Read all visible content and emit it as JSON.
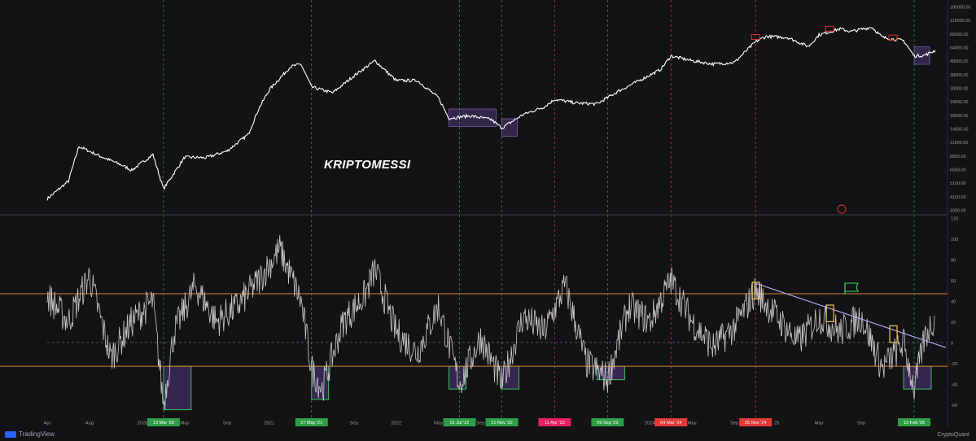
{
  "watermark": "KRIPTOMESSI",
  "branding": {
    "platform": "TradingView",
    "indicator_credit": "CryptoQuant"
  },
  "colors": {
    "background": "#131316",
    "price_line": "#ffffff",
    "oscillator_line": "#c8c8c8",
    "band_line": "#d9822b",
    "zone_border": "#3bd15e",
    "zone_fill": "#3a2a55",
    "green_marker": "#2e9e46",
    "red_marker": "#e53935",
    "pink_marker": "#e91e63",
    "trendline": "#b9a4e8",
    "highlight_box": "#f0c75e"
  },
  "chart_data": [
    {
      "type": "line",
      "panel": "price",
      "scale": "log",
      "ylim": [
        3300,
        180000
      ],
      "y_ticks": [
        "180000.00",
        "110000.00",
        "86000.00",
        "64000.00",
        "48000.00",
        "38000.00",
        "30000.00",
        "24000.00",
        "18000.00",
        "14000.00",
        "11000.00",
        "8500.00",
        "6500.00",
        "5100.00",
        "4100.00",
        "3300.00"
      ],
      "series": [
        {
          "x": [
            "2019-04",
            "2019-06",
            "2019-07",
            "2019-09",
            "2019-11",
            "2019-12",
            "2020-02",
            "2020-03",
            "2020-05",
            "2020-07",
            "2020-09",
            "2020-11",
            "2020-12",
            "2021-01",
            "2021-03",
            "2021-04",
            "2021-05",
            "2021-07",
            "2021-09",
            "2021-11",
            "2022-01",
            "2022-03",
            "2022-05",
            "2022-06",
            "2022-08",
            "2022-10",
            "2022-11",
            "2023-01",
            "2023-03",
            "2023-04",
            "2023-06",
            "2023-08",
            "2023-10",
            "2023-12",
            "2024-02",
            "2024-03",
            "2024-05",
            "2024-07",
            "2024-09",
            "2024-11",
            "2024-12",
            "2025-02",
            "2025-04",
            "2025-05",
            "2025-07",
            "2025-08",
            "2025-10",
            "2025-11",
            "2026-01",
            "2026-02",
            "2026-03",
            "2026-04"
          ],
          "y": [
            4100,
            5800,
            11500,
            9500,
            8000,
            7200,
            9800,
            5000,
            9300,
            9200,
            10500,
            14500,
            24000,
            35000,
            55000,
            58000,
            37000,
            33000,
            46000,
            62000,
            42000,
            42000,
            30000,
            20000,
            21000,
            19500,
            16500,
            21500,
            25000,
            29000,
            27000,
            26500,
            34000,
            42000,
            52000,
            68000,
            62000,
            58000,
            60000,
            90000,
            100000,
            98000,
            82000,
            103000,
            116000,
            110000,
            120000,
            98000,
            92000,
            68000,
            69000,
            76000
          ]
        }
      ],
      "marked_zones": [
        {
          "from": "2022-06",
          "to": "2022-10"
        },
        {
          "from": "2022-11",
          "to": "2022-12"
        },
        {
          "from": "2026-02",
          "to": "2026-03"
        }
      ]
    },
    {
      "type": "line",
      "panel": "oscillator",
      "ylim": [
        -70,
        120
      ],
      "y_ticks": [
        "120",
        "100",
        "80",
        "60",
        "40",
        "20",
        "0",
        "-20",
        "-40",
        "-60"
      ],
      "bands": [
        47,
        -23
      ],
      "series": [
        {
          "x": [
            "2019-04",
            "2019-06",
            "2019-08",
            "2019-10",
            "2019-12",
            "2020-02",
            "2020-03",
            "2020-04",
            "2020-06",
            "2020-08",
            "2020-10",
            "2020-12",
            "2021-01",
            "2021-02",
            "2021-04",
            "2021-05",
            "2021-06",
            "2021-08",
            "2021-10",
            "2021-11",
            "2022-01",
            "2022-03",
            "2022-05",
            "2022-07",
            "2022-09",
            "2022-11",
            "2023-01",
            "2023-03",
            "2023-05",
            "2023-07",
            "2023-09",
            "2023-11",
            "2024-01",
            "2024-03",
            "2024-05",
            "2024-07",
            "2024-09",
            "2024-11",
            "2025-01",
            "2025-03",
            "2025-05",
            "2025-07",
            "2025-09",
            "2025-11",
            "2026-01",
            "2026-02",
            "2026-03",
            "2026-04"
          ],
          "y": [
            45,
            20,
            65,
            -15,
            20,
            40,
            -60,
            10,
            55,
            20,
            35,
            60,
            75,
            90,
            40,
            -25,
            -45,
            20,
            45,
            70,
            10,
            -10,
            35,
            -40,
            5,
            -40,
            25,
            10,
            55,
            -20,
            -35,
            35,
            20,
            60,
            20,
            -5,
            15,
            50,
            25,
            0,
            25,
            10,
            25,
            -25,
            0,
            -45,
            5,
            25
          ]
        }
      ],
      "trendline": {
        "from": {
          "x": "2024-11",
          "y": 57
        },
        "to": {
          "x": "2026-05",
          "y": -5
        }
      },
      "highlighted_peaks": [
        "2024-11",
        "2025-06",
        "2025-12"
      ],
      "bottom_zones": [
        {
          "from": "2020-03",
          "to": "2020-05",
          "low": -65,
          "high": -23
        },
        {
          "from": "2021-05",
          "to": "2021-06",
          "low": -55,
          "high": -23
        },
        {
          "from": "2022-06",
          "to": "2022-07",
          "low": -45,
          "high": -23
        },
        {
          "from": "2022-11",
          "to": "2022-12",
          "low": -45,
          "high": -23
        },
        {
          "from": "2023-08",
          "to": "2023-10",
          "low": -36,
          "high": -23
        },
        {
          "from": "2026-01",
          "to": "2026-03",
          "low": -45,
          "high": -23
        }
      ]
    }
  ],
  "x_axis_labels": [
    "Apr",
    "Aug",
    "2020",
    "May",
    "Sep",
    "2021",
    "May",
    "Sep",
    "2022",
    "May",
    "Sep",
    "Mar",
    "2024",
    "May",
    "Sep",
    "25",
    "May",
    "Sep",
    "2026",
    "6"
  ],
  "event_markers": [
    {
      "label": "13 Mar '20",
      "color": "green"
    },
    {
      "label": "27 May '21",
      "color": "green"
    },
    {
      "label": "01 Jul '22",
      "color": "green"
    },
    {
      "label": "21 Nov '22",
      "color": "green"
    },
    {
      "label": "11 Apr '23",
      "color": "pink"
    },
    {
      "label": "09 Sep '23",
      "color": "green"
    },
    {
      "label": "04 Mar '24",
      "color": "red"
    },
    {
      "label": "25 Nov '24",
      "color": "red"
    },
    {
      "label": "12 Feb '26",
      "color": "green"
    }
  ]
}
